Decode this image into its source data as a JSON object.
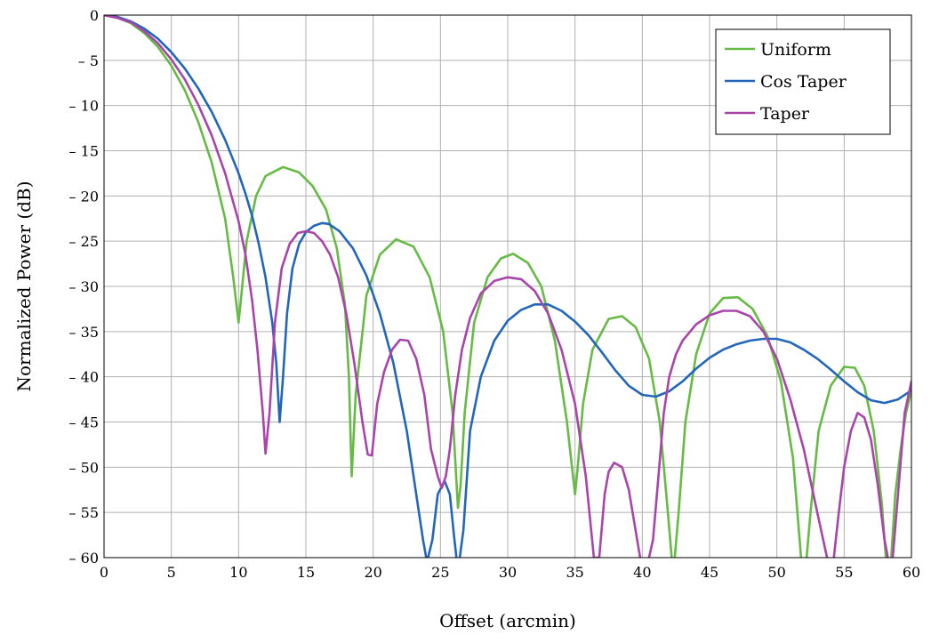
{
  "chart_data": {
    "type": "line",
    "title": "",
    "xlabel": "Offset (arcmin)",
    "ylabel": "Normalized Power (dB)",
    "xlim": [
      0,
      60
    ],
    "ylim": [
      -60,
      0
    ],
    "x_ticks": [
      0,
      5,
      10,
      15,
      20,
      25,
      30,
      35,
      40,
      45,
      50,
      55,
      60
    ],
    "y_ticks": [
      0,
      -5,
      -10,
      -15,
      -20,
      -25,
      -30,
      -35,
      -40,
      -45,
      -50,
      -55,
      -60
    ],
    "x_tick_labels": [
      "0",
      "5",
      "10",
      "15",
      "20",
      "25",
      "30",
      "35",
      "40",
      "45",
      "50",
      "55",
      "60"
    ],
    "y_tick_labels": [
      "0",
      "– 5",
      "– 10",
      "– 15",
      "– 20",
      "– 25",
      "– 30",
      "– 35",
      "– 40",
      "– 45",
      "– 50",
      "– 55",
      "– 60"
    ],
    "grid": true,
    "legend_position": "top-right",
    "series": [
      {
        "name": "Uniform",
        "color": "#66bb44",
        "x": [
          0,
          1,
          2,
          3,
          4,
          5,
          6,
          7,
          8,
          9,
          9.6,
          10.0,
          10.2,
          10.6,
          11.3,
          12.0,
          13.3,
          14.5,
          15.5,
          16.5,
          17.3,
          17.9,
          18.2,
          18.4,
          18.7,
          19.5,
          20.5,
          21.7,
          23.0,
          24.2,
          25.2,
          25.9,
          26.3,
          26.5,
          26.8,
          27.5,
          28.5,
          29.5,
          30.4,
          31.5,
          32.5,
          33.5,
          34.4,
          35.0,
          35.2,
          35.6,
          36.3,
          37.5,
          38.5,
          39.5,
          40.5,
          41.3,
          41.9,
          42.3,
          42.7,
          43.2,
          44.0,
          45.0,
          46.0,
          47.1,
          48.2,
          49.3,
          50.3,
          51.2,
          51.8,
          52.1,
          52.5,
          53.1,
          54.0,
          55.0,
          55.8,
          56.5,
          57.2,
          57.8,
          58.2,
          58.5,
          58.8,
          59.2,
          59.6,
          60.0
        ],
        "y": [
          0,
          -0.3,
          -0.9,
          -2.0,
          -3.5,
          -5.6,
          -8.3,
          -11.8,
          -16.3,
          -22.5,
          -29,
          -34.0,
          -31.0,
          -25.0,
          -20.0,
          -17.8,
          -16.8,
          -17.4,
          -18.9,
          -21.5,
          -25.8,
          -32.0,
          -40.0,
          -51.0,
          -42.0,
          -31.0,
          -26.5,
          -24.8,
          -25.6,
          -29.0,
          -35.0,
          -44.0,
          -54.5,
          -52.0,
          -44.0,
          -34.0,
          -29.0,
          -26.9,
          -26.4,
          -27.4,
          -30.0,
          -36.0,
          -45.0,
          -53.0,
          -50.0,
          -43.0,
          -37.0,
          -33.6,
          -33.3,
          -34.5,
          -38.0,
          -45.0,
          -55.0,
          -62.0,
          -55.0,
          -45.0,
          -37.5,
          -33.0,
          -31.3,
          -31.2,
          -32.5,
          -35.5,
          -40.5,
          -49.0,
          -60.0,
          -62.0,
          -55.0,
          -46.0,
          -41.0,
          -38.9,
          -39.0,
          -41.0,
          -46.0,
          -54.0,
          -62.0,
          -60.0,
          -53.0,
          -48.0,
          -44.0,
          -41.5
        ]
      },
      {
        "name": "Cos Taper",
        "color": "#2266bb",
        "x": [
          0,
          1,
          2,
          3,
          4,
          5,
          6,
          7,
          8,
          9,
          10,
          10.5,
          11,
          11.5,
          12,
          12.5,
          12.8,
          13.05,
          13.3,
          13.6,
          14.0,
          14.5,
          15.0,
          15.6,
          16.2,
          16.7,
          17.5,
          18.5,
          19.5,
          20.5,
          21.5,
          22.5,
          23.2,
          23.7,
          24.0,
          24.4,
          24.8,
          25.3,
          25.7,
          26.0,
          26.3,
          26.7,
          27.2,
          28.0,
          29.0,
          30.0,
          31.0,
          32.0,
          33.0,
          34.0,
          35.0,
          36.0,
          37.0,
          38.0,
          39.0,
          40.0,
          41.0,
          42.0,
          43.0,
          44.0,
          45.0,
          46.0,
          47.0,
          48.0,
          49.0,
          50.0,
          51.0,
          52.0,
          53.0,
          54.0,
          55.0,
          56.0,
          57.0,
          58.0,
          59.0,
          60.0
        ],
        "y": [
          0,
          -0.2,
          -0.7,
          -1.5,
          -2.6,
          -4.1,
          -5.9,
          -8.1,
          -10.7,
          -13.8,
          -17.5,
          -19.7,
          -22.2,
          -25.3,
          -29.0,
          -34.0,
          -38.5,
          -45.0,
          -40.0,
          -33.0,
          -28.0,
          -25.3,
          -24.0,
          -23.3,
          -23.0,
          -23.1,
          -23.9,
          -25.8,
          -28.8,
          -33.0,
          -38.5,
          -46.0,
          -53.0,
          -58.0,
          -60.5,
          -58.0,
          -53.0,
          -51.5,
          -53.0,
          -57.5,
          -61.5,
          -57.0,
          -46.0,
          -40.0,
          -36.0,
          -33.8,
          -32.6,
          -32.0,
          -32.0,
          -32.7,
          -33.9,
          -35.4,
          -37.3,
          -39.3,
          -41.0,
          -42.0,
          -42.2,
          -41.6,
          -40.5,
          -39.1,
          -37.9,
          -37.0,
          -36.4,
          -36.0,
          -35.8,
          -35.8,
          -36.2,
          -37.0,
          -38.0,
          -39.2,
          -40.5,
          -41.7,
          -42.6,
          -42.9,
          -42.5,
          -41.5
        ]
      },
      {
        "name": "Taper",
        "color": "#aa44aa",
        "x": [
          0,
          1,
          2,
          3,
          4,
          5,
          6,
          7,
          8,
          9,
          10,
          10.5,
          11,
          11.4,
          11.8,
          12.0,
          12.3,
          12.7,
          13.2,
          13.8,
          14.4,
          15.0,
          15.6,
          16.2,
          16.8,
          17.4,
          18.0,
          18.6,
          19.2,
          19.6,
          19.9,
          20.3,
          20.8,
          21.4,
          22.0,
          22.6,
          23.2,
          23.8,
          24.3,
          24.8,
          25.1,
          25.4,
          25.7,
          26.1,
          26.6,
          27.2,
          28.0,
          29.0,
          30.0,
          31.0,
          32.0,
          33.0,
          34.0,
          35.0,
          35.8,
          36.4,
          36.8,
          37.2,
          37.5,
          37.9,
          38.5,
          39.0,
          39.5,
          39.9,
          40.2,
          40.5,
          40.8,
          41.2,
          41.6,
          42.0,
          42.5,
          43.0,
          44.0,
          45.0,
          46.0,
          47.0,
          48.0,
          49.0,
          50.0,
          51.0,
          52.0,
          53.0,
          53.8,
          54.2,
          54.6,
          55.0,
          55.5,
          56.0,
          56.5,
          57.0,
          57.5,
          58.0,
          58.5,
          59.0,
          59.5,
          60.0
        ],
        "y": [
          0,
          -0.3,
          -0.8,
          -1.8,
          -3.1,
          -4.9,
          -7.1,
          -9.9,
          -13.3,
          -17.5,
          -22.8,
          -26.4,
          -31.5,
          -37.0,
          -44.0,
          -48.5,
          -44.0,
          -34.0,
          -28.0,
          -25.3,
          -24.1,
          -23.9,
          -24.1,
          -25.0,
          -26.5,
          -29.0,
          -33.0,
          -38.5,
          -45.0,
          -48.6,
          -48.7,
          -43.0,
          -39.5,
          -37.0,
          -35.9,
          -36.0,
          -38.0,
          -42.0,
          -48.0,
          -51.0,
          -52.3,
          -51.0,
          -48.0,
          -42.0,
          -37.0,
          -33.5,
          -30.8,
          -29.4,
          -29.0,
          -29.2,
          -30.5,
          -33.0,
          -37.0,
          -43.0,
          -51.0,
          -60.0,
          -60.0,
          -53.0,
          -50.5,
          -49.5,
          -50.0,
          -52.5,
          -57.0,
          -60.5,
          -60.5,
          -60.0,
          -58.0,
          -51.0,
          -44.0,
          -40.0,
          -37.5,
          -36.0,
          -34.2,
          -33.2,
          -32.7,
          -32.7,
          -33.3,
          -35.0,
          -38.0,
          -42.5,
          -48.0,
          -55.0,
          -60.5,
          -60.5,
          -55.0,
          -50.0,
          -46.0,
          -44.0,
          -44.5,
          -47.0,
          -52.0,
          -58.0,
          -62.0,
          -53.0,
          -44.0,
          -40.5
        ]
      }
    ]
  }
}
